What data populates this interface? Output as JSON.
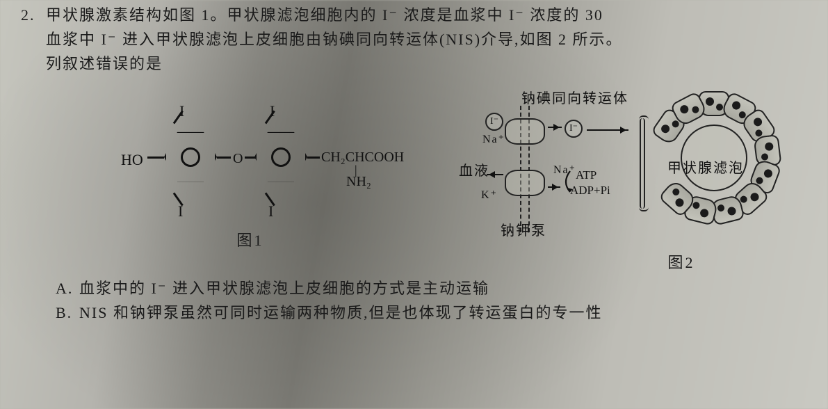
{
  "question": {
    "number": "2.",
    "line1": "甲状腺激素结构如图 1。甲状腺滤泡细胞内的 I⁻ 浓度是血浆中 I⁻ 浓度的 30",
    "line2": "血浆中 I⁻ 进入甲状腺滤泡上皮细胞由钠碘同向转运体(NIS)介导,如图 2 所示。",
    "line3": "列叙述错误的是"
  },
  "figure1": {
    "caption": "图1",
    "atoms": {
      "HO": "HO",
      "I": "I",
      "O": "O",
      "chain": "CH₂CHCOOH",
      "nh2_stick": "|",
      "nh2": "NH₂"
    },
    "colors": {
      "bond": "#111111"
    }
  },
  "figure2": {
    "caption": "图2",
    "labels": {
      "nis": "钠碘同向转运体",
      "blood": "血液",
      "pump": "钠钾泵",
      "follicle": "甲状腺滤泡",
      "atp": "ATP",
      "adp": "ADP+Pi"
    },
    "ions": {
      "I": "I⁻",
      "Na": "Na⁺",
      "K": "K⁺"
    },
    "follicle_ring": {
      "cell_count": 13,
      "radius": 78,
      "cell_fill": "#b4b4ab",
      "nucleus_color": "#1b1b1b"
    },
    "colors": {
      "line": "#222222",
      "background": "#c3c3ba"
    }
  },
  "options": {
    "A": {
      "marker": "A.",
      "text": "血浆中的 I⁻ 进入甲状腺滤泡上皮细胞的方式是主动运输"
    },
    "B": {
      "marker": "B.",
      "text": "NIS 和钠钾泵虽然可同时运输两种物质,但是也体现了转运蛋白的专一性"
    }
  },
  "style": {
    "body_fontsize": 22,
    "letter_spacing": 2,
    "text_color": "#1a1a1a",
    "paper_gradient": [
      "#c6c6be",
      "#b5b4ae",
      "#8f8e88",
      "#7d7c76",
      "#9c9b94",
      "#bebdb6",
      "#c9c9c2"
    ]
  }
}
